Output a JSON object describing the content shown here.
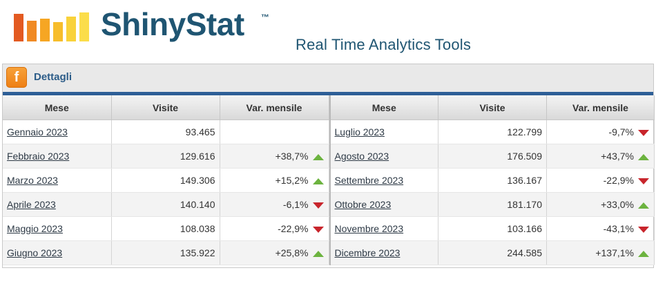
{
  "brand": {
    "name": "ShinyStat",
    "tm": "™",
    "tagline": "Real Time Analytics Tools",
    "bar_colors": [
      "#e35a21",
      "#f08a24",
      "#f6a623",
      "#f7bd2b",
      "#f9d23a",
      "#fbdd4a"
    ]
  },
  "panel": {
    "title": "Dettagli",
    "icon": "shinystat-f-icon",
    "accent": "#2e5f97"
  },
  "table": {
    "headers": {
      "month": "Mese",
      "visits": "Visite",
      "var": "Var. mensile"
    },
    "left": [
      {
        "month": "Gennaio 2023",
        "visits": "93.465",
        "var": "",
        "trend": "none"
      },
      {
        "month": "Febbraio 2023",
        "visits": "129.616",
        "var": "+38,7%",
        "trend": "up"
      },
      {
        "month": "Marzo 2023",
        "visits": "149.306",
        "var": "+15,2%",
        "trend": "up"
      },
      {
        "month": "Aprile 2023",
        "visits": "140.140",
        "var": "-6,1%",
        "trend": "down"
      },
      {
        "month": "Maggio 2023",
        "visits": "108.038",
        "var": "-22,9%",
        "trend": "down"
      },
      {
        "month": "Giugno 2023",
        "visits": "135.922",
        "var": "+25,8%",
        "trend": "up"
      }
    ],
    "right": [
      {
        "month": "Luglio 2023",
        "visits": "122.799",
        "var": "-9,7%",
        "trend": "down"
      },
      {
        "month": "Agosto 2023",
        "visits": "176.509",
        "var": "+43,7%",
        "trend": "up"
      },
      {
        "month": "Settembre 2023",
        "visits": "136.167",
        "var": "-22,9%",
        "trend": "down"
      },
      {
        "month": "Ottobre 2023",
        "visits": "181.170",
        "var": "+33,0%",
        "trend": "up"
      },
      {
        "month": "Novembre 2023",
        "visits": "103.166",
        "var": "-43,1%",
        "trend": "down"
      },
      {
        "month": "Dicembre 2023",
        "visits": "244.585",
        "var": "+137,1%",
        "trend": "up"
      }
    ]
  },
  "colors": {
    "up": "#6cb33f",
    "down": "#c8252c"
  }
}
